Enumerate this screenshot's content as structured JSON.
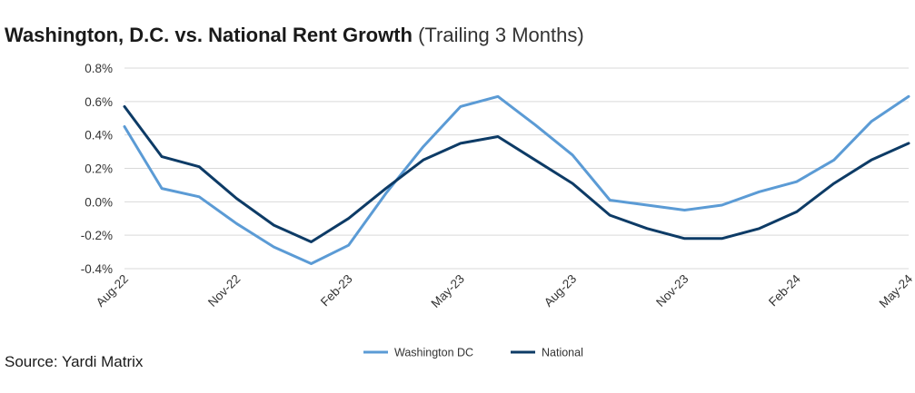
{
  "title": {
    "main": "Washington, D.C. vs. National Rent Growth",
    "sub": "(Trailing 3 Months)"
  },
  "source": "Source: Yardi Matrix",
  "colors": {
    "washington": "#5b9bd5",
    "national": "#0d3b66",
    "grid": "#d9d9d9"
  },
  "chart_data": {
    "type": "line",
    "x": [
      "Aug-22",
      "Sep-22",
      "Oct-22",
      "Nov-22",
      "Dec-22",
      "Jan-23",
      "Feb-23",
      "Mar-23",
      "Apr-23",
      "May-23",
      "Jun-23",
      "Jul-23",
      "Aug-23",
      "Sep-23",
      "Oct-23",
      "Nov-23",
      "Dec-23",
      "Jan-24",
      "Feb-24",
      "Mar-24",
      "Apr-24",
      "May-24"
    ],
    "x_tick_labels": [
      "Aug-22",
      "Nov-22",
      "Feb-23",
      "May-23",
      "Aug-23",
      "Nov-23",
      "Feb-24",
      "May-24"
    ],
    "y_tick_labels": [
      "0.8%",
      "0.6%",
      "0.4%",
      "0.2%",
      "0.0%",
      "-0.2%",
      "-0.4%"
    ],
    "ylim": [
      -0.4,
      0.8
    ],
    "y_ticks": [
      0.8,
      0.6,
      0.4,
      0.2,
      0.0,
      -0.2,
      -0.4
    ],
    "grid": "horizontal",
    "legend_position": "bottom-center",
    "series": [
      {
        "name": "Washington DC",
        "color": "#5b9bd5",
        "values": [
          0.45,
          0.08,
          0.03,
          -0.13,
          -0.27,
          -0.37,
          -0.26,
          0.05,
          0.33,
          0.57,
          0.63,
          0.46,
          0.28,
          0.01,
          -0.02,
          -0.05,
          -0.02,
          0.06,
          0.12,
          0.25,
          0.48,
          0.63
        ]
      },
      {
        "name": "National",
        "color": "#0d3b66",
        "values": [
          0.57,
          0.27,
          0.21,
          0.02,
          -0.14,
          -0.24,
          -0.1,
          0.08,
          0.25,
          0.35,
          0.39,
          0.25,
          0.11,
          -0.08,
          -0.16,
          -0.22,
          -0.22,
          -0.16,
          -0.06,
          0.11,
          0.25,
          0.35
        ]
      }
    ]
  }
}
